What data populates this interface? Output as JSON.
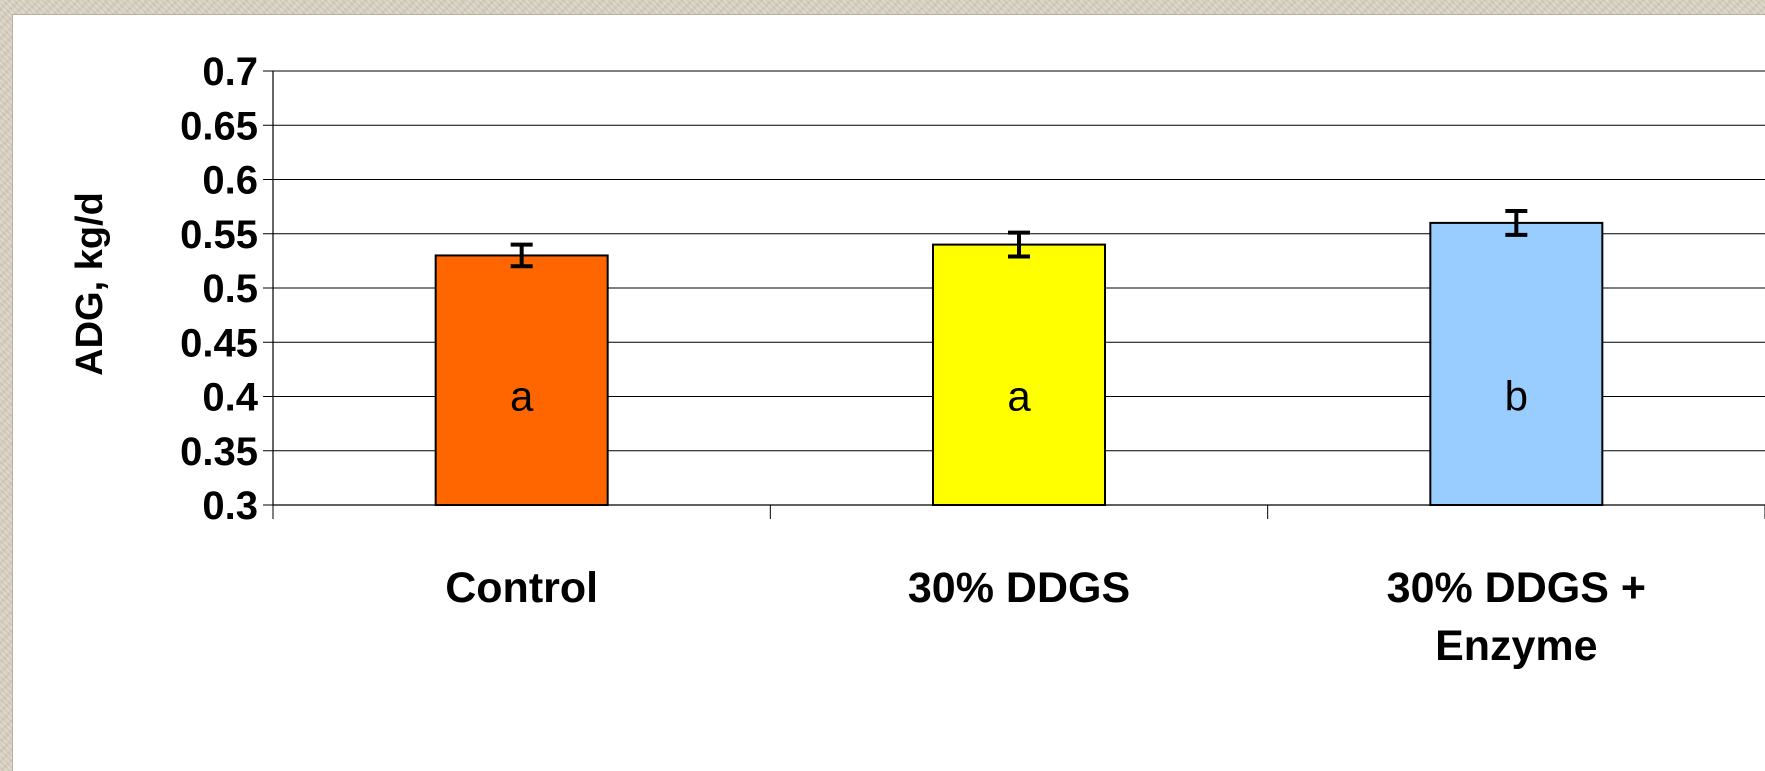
{
  "chart_data": {
    "type": "bar",
    "title": "",
    "xlabel": "",
    "ylabel": "ADG, kg/d",
    "ylim": [
      0.3,
      0.7
    ],
    "yticks": [
      0.3,
      0.35,
      0.4,
      0.45,
      0.5,
      0.55,
      0.6,
      0.65,
      0.7
    ],
    "ytick_labels": [
      "0.3",
      "0.35",
      "0.4",
      "0.45",
      "0.5",
      "0.55",
      "0.6",
      "0.65",
      "0.7"
    ],
    "grid": true,
    "categories": [
      [
        "Control"
      ],
      [
        "30% DDGS"
      ],
      [
        "30% DDGS +",
        "Enzyme"
      ]
    ],
    "values": [
      0.53,
      0.54,
      0.56
    ],
    "error": [
      0.01,
      0.011,
      0.011
    ],
    "bar_letters": [
      "a",
      "a",
      "b"
    ],
    "colors": [
      "#ff6600",
      "#ffff00",
      "#99ccff"
    ]
  }
}
